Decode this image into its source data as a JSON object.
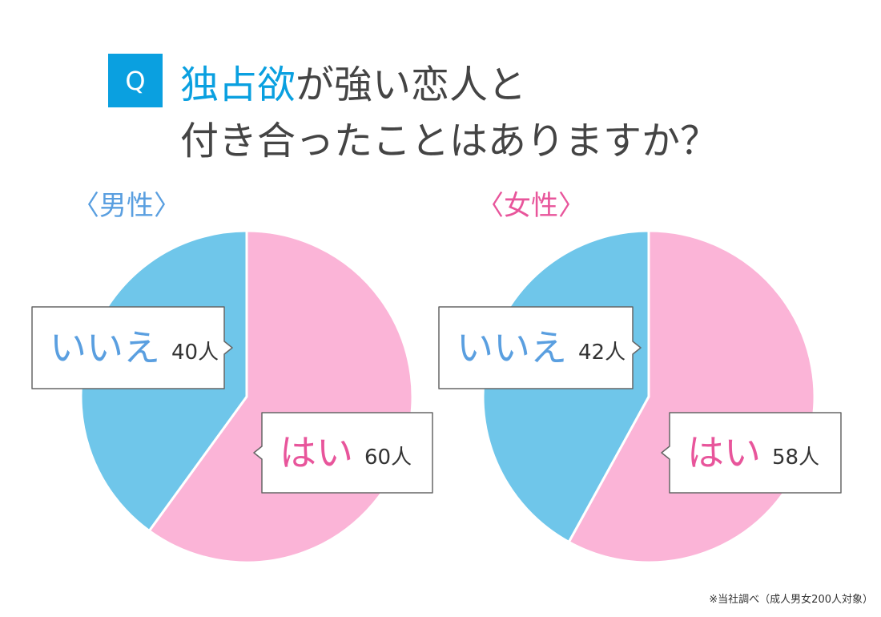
{
  "header": {
    "q": "Q",
    "title_highlight": "独占欲",
    "title_line1": "が強い恋人と",
    "title_line2": "付き合ったことはありますか？"
  },
  "chart_data": [
    {
      "type": "pie",
      "title": "〈男性〉",
      "title_color": "#5a9fe0",
      "categories": [
        "はい",
        "いいえ"
      ],
      "values": [
        60,
        40
      ],
      "value_labels": [
        "60人",
        "40人"
      ],
      "colors": [
        "#fbb4d7",
        "#6fc6ea"
      ],
      "label_colors": [
        "#e8559b",
        "#5a9fe0"
      ]
    },
    {
      "type": "pie",
      "title": "〈女性〉",
      "title_color": "#e8559b",
      "categories": [
        "はい",
        "いいえ"
      ],
      "values": [
        58,
        42
      ],
      "value_labels": [
        "58人",
        "42人"
      ],
      "colors": [
        "#fbb4d7",
        "#6fc6ea"
      ],
      "label_colors": [
        "#e8559b",
        "#5a9fe0"
      ]
    }
  ],
  "footnote": "※当社調べ（成人男女200人対象）"
}
